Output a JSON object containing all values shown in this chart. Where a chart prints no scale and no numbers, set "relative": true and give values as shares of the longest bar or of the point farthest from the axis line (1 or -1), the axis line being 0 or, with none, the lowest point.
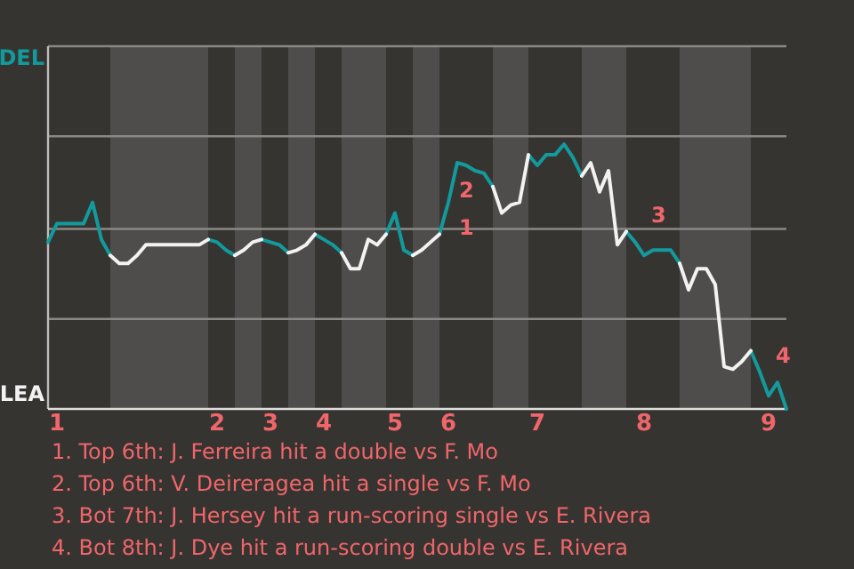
{
  "chart_data": {
    "type": "line",
    "relative": true,
    "marker": "none",
    "line_style": "solid",
    "categories": [
      null,
      "1",
      null,
      null,
      null,
      null,
      null,
      null,
      null,
      null,
      null,
      null,
      null,
      null,
      null,
      null,
      null,
      null,
      null,
      "2",
      null,
      null,
      null,
      null,
      null,
      "3",
      null,
      null,
      null,
      null,
      null,
      "4",
      null,
      null,
      null,
      null,
      null,
      null,
      null,
      "5",
      null,
      null,
      null,
      null,
      null,
      "6",
      null,
      null,
      null,
      null,
      null,
      null,
      null,
      null,
      null,
      "7",
      null,
      null,
      null,
      null,
      null,
      null,
      null,
      null,
      null,
      null,
      null,
      "8",
      null,
      null,
      null,
      null,
      null,
      null,
      null,
      null,
      null,
      null,
      null,
      null,
      null,
      "9",
      null,
      null
    ],
    "series": [
      {
        "color": "#139a9c",
        "values": [
          0.63,
          0.7,
          0.7,
          0.7,
          0.7,
          0.78,
          0.64,
          0.58,
          null,
          null,
          null,
          null,
          null,
          null,
          null,
          null,
          null,
          null,
          0.64,
          0.63,
          0.6,
          0.58,
          null,
          null,
          0.64,
          0.63,
          0.62,
          0.59,
          null,
          null,
          0.66,
          0.64,
          0.62,
          0.59,
          null,
          null,
          null,
          null,
          0.66,
          0.74,
          0.6,
          0.58,
          null,
          null,
          0.66,
          0.78,
          0.93,
          0.92,
          0.9,
          0.89,
          0.84,
          null,
          null,
          null,
          0.96,
          0.92,
          0.96,
          0.96,
          1,
          0.95,
          0.88,
          null,
          null,
          null,
          null,
          0.67,
          0.63,
          0.58,
          0.6,
          0.6,
          0.6,
          0.55,
          null,
          null,
          null,
          null,
          null,
          null,
          null,
          0.22,
          0.14,
          0.05,
          0.1,
          0
        ]
      },
      {
        "color": "#f2f2f2",
        "values": [
          null,
          null,
          null,
          null,
          null,
          null,
          null,
          0.58,
          0.55,
          0.55,
          0.58,
          0.62,
          0.62,
          0.62,
          0.62,
          0.62,
          0.62,
          0.62,
          0.64,
          null,
          null,
          0.58,
          0.6,
          0.63,
          0.64,
          null,
          null,
          0.59,
          0.6,
          0.62,
          0.66,
          null,
          null,
          0.59,
          0.53,
          0.53,
          0.64,
          0.62,
          0.66,
          null,
          null,
          0.58,
          0.6,
          0.63,
          0.66,
          null,
          null,
          null,
          null,
          null,
          0.84,
          0.74,
          0.77,
          0.78,
          0.96,
          null,
          null,
          null,
          null,
          null,
          0.88,
          0.93,
          0.82,
          0.9,
          0.62,
          0.67,
          null,
          null,
          null,
          null,
          null,
          0.55,
          0.45,
          0.53,
          0.53,
          0.47,
          0.16,
          0.15,
          0.18,
          0.22,
          null,
          null,
          null,
          null
        ]
      }
    ],
    "ref_lines": [
      {
        "axis": "y",
        "value": 0.34,
        "color": "#8a8886"
      },
      {
        "axis": "y",
        "value": 0.68,
        "color": "#8a8886"
      },
      {
        "axis": "y",
        "value": 1.03,
        "color": "#8a8886"
      },
      {
        "axis": "y",
        "value": 1.37,
        "color": "#8a8886"
      }
    ],
    "annotations": [
      "DEL",
      "LEA",
      "1. Top 6th: J. Ferreira hit a double vs F. Mo",
      "2. Top 6th: V. Deireragea hit a single vs F. Mo",
      "3. Bot 7th: J. Hersey hit a run-scoring single vs E. Rivera",
      "4. Bot 8th: J. Dye hit a run-scoring double vs E. Rivera",
      {
        "text": "1",
        "x": "6",
        "y": 0.68
      },
      {
        "text": "2",
        "x": "6",
        "y": 0.82
      },
      {
        "text": "3",
        "x": "8",
        "y": 0.58
      },
      {
        "text": "4",
        "x": "9",
        "y": 0.05
      }
    ]
  }
}
